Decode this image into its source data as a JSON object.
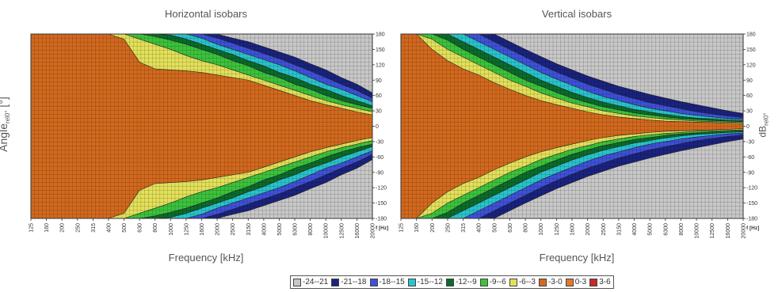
{
  "chart_data": [
    {
      "type": "heatmap",
      "title": "Horizontal isobars",
      "xlabel": "Frequency [kHz]",
      "x_unit": "f [Hz]",
      "ylabel": "Angle",
      "ylabel_sub": "rel0°",
      "ylabel_unit": "[°]",
      "x_ticks": [
        "125",
        "160",
        "200",
        "250",
        "315",
        "400",
        "500",
        "630",
        "800",
        "1000",
        "1250",
        "1600",
        "2000",
        "2500",
        "3150",
        "4000",
        "5000",
        "6300",
        "8000",
        "10000",
        "12500",
        "16000",
        "20000"
      ],
      "y_ticks": [
        180,
        150,
        120,
        90,
        60,
        30,
        0,
        -30,
        -60,
        -90,
        -120,
        -150,
        -180
      ],
      "ylim": [
        -180,
        180
      ],
      "value_unit": "dB rel0°",
      "contour_edge_deg": {
        "-3": [
          180,
          180,
          180,
          180,
          180,
          180,
          170,
          125,
          112,
          110,
          108,
          105,
          100,
          95,
          90,
          80,
          70,
          60,
          50,
          42,
          35,
          28,
          22
        ],
        "-6": [
          null,
          null,
          null,
          null,
          null,
          null,
          180,
          170,
          160,
          150,
          138,
          128,
          120,
          110,
          100,
          90,
          80,
          70,
          60,
          50,
          42,
          35,
          28
        ],
        "-9": [
          null,
          null,
          null,
          null,
          null,
          null,
          null,
          180,
          175,
          168,
          160,
          150,
          140,
          128,
          118,
          105,
          95,
          82,
          72,
          60,
          50,
          42,
          35
        ],
        "-12": [
          null,
          null,
          null,
          null,
          null,
          null,
          null,
          null,
          180,
          178,
          170,
          160,
          150,
          140,
          128,
          118,
          105,
          95,
          82,
          72,
          60,
          50,
          40
        ],
        "-15": [
          null,
          null,
          null,
          null,
          null,
          null,
          null,
          null,
          null,
          null,
          180,
          172,
          160,
          150,
          140,
          130,
          120,
          108,
          95,
          82,
          72,
          60,
          48
        ],
        "-18": [
          null,
          null,
          null,
          null,
          null,
          null,
          null,
          null,
          null,
          null,
          null,
          180,
          172,
          162,
          152,
          142,
          132,
          120,
          108,
          95,
          82,
          70,
          55
        ],
        "-21": [
          null,
          null,
          null,
          null,
          null,
          null,
          null,
          null,
          null,
          null,
          null,
          null,
          180,
          172,
          165,
          155,
          145,
          135,
          122,
          110,
          95,
          82,
          65
        ]
      }
    },
    {
      "type": "heatmap",
      "title": "Vertical isobars",
      "xlabel": "Frequency [kHz]",
      "x_unit": "f [Hz]",
      "ylabel": "dB",
      "ylabel_sub": "rel0°",
      "x_ticks": [
        "125",
        "160",
        "200",
        "250",
        "315",
        "400",
        "500",
        "630",
        "800",
        "1000",
        "1250",
        "1600",
        "2000",
        "2500",
        "3150",
        "4000",
        "5000",
        "6300",
        "8000",
        "10000",
        "12500",
        "16000",
        "20000"
      ],
      "y_ticks": [
        180,
        150,
        120,
        90,
        60,
        30,
        0,
        -30,
        -60,
        -90,
        -120,
        -150,
        -180
      ],
      "ylim": [
        -180,
        180
      ],
      "value_unit": "dB rel0°",
      "contour_edge_deg": {
        "-3": [
          180,
          180,
          150,
          128,
          112,
          100,
          85,
          72,
          60,
          50,
          42,
          35,
          28,
          22,
          18,
          15,
          12,
          10,
          9,
          8,
          7,
          6,
          5
        ],
        "-6": [
          null,
          180,
          170,
          150,
          135,
          120,
          105,
          90,
          78,
          65,
          55,
          45,
          38,
          30,
          25,
          20,
          17,
          14,
          12,
          10,
          9,
          8,
          7
        ],
        "-9": [
          null,
          null,
          180,
          168,
          150,
          135,
          120,
          105,
          90,
          78,
          66,
          55,
          46,
          38,
          32,
          26,
          22,
          18,
          15,
          13,
          11,
          10,
          9
        ],
        "-12": [
          null,
          null,
          null,
          180,
          165,
          150,
          135,
          120,
          105,
          90,
          78,
          66,
          56,
          47,
          40,
          33,
          28,
          23,
          19,
          16,
          14,
          12,
          11
        ],
        "-15": [
          null,
          null,
          null,
          null,
          180,
          165,
          150,
          135,
          120,
          105,
          92,
          80,
          68,
          58,
          50,
          42,
          35,
          30,
          25,
          21,
          18,
          15,
          13
        ],
        "-18": [
          null,
          null,
          null,
          null,
          null,
          180,
          165,
          150,
          135,
          120,
          106,
          94,
          82,
          72,
          62,
          54,
          46,
          40,
          34,
          28,
          24,
          20,
          17
        ],
        "-21": [
          null,
          null,
          null,
          null,
          null,
          null,
          180,
          165,
          150,
          136,
          122,
          110,
          98,
          88,
          78,
          70,
          62,
          55,
          48,
          42,
          36,
          30,
          25
        ]
      }
    }
  ],
  "legend": {
    "items": [
      {
        "label": "-24--21",
        "color": "#c8c8c8"
      },
      {
        "label": "-21--18",
        "color": "#1a237e"
      },
      {
        "label": "-18--15",
        "color": "#3f51d8"
      },
      {
        "label": "-15--12",
        "color": "#29c4cc"
      },
      {
        "label": "-12--9",
        "color": "#0b6b2b"
      },
      {
        "label": "-9--6",
        "color": "#3cc33c"
      },
      {
        "label": "-6--3",
        "color": "#e3e05a"
      },
      {
        "label": "-3-0",
        "color": "#d2691e"
      },
      {
        "label": "0-3",
        "color": "#e2782a"
      },
      {
        "label": "3-6",
        "color": "#c62828"
      }
    ]
  }
}
